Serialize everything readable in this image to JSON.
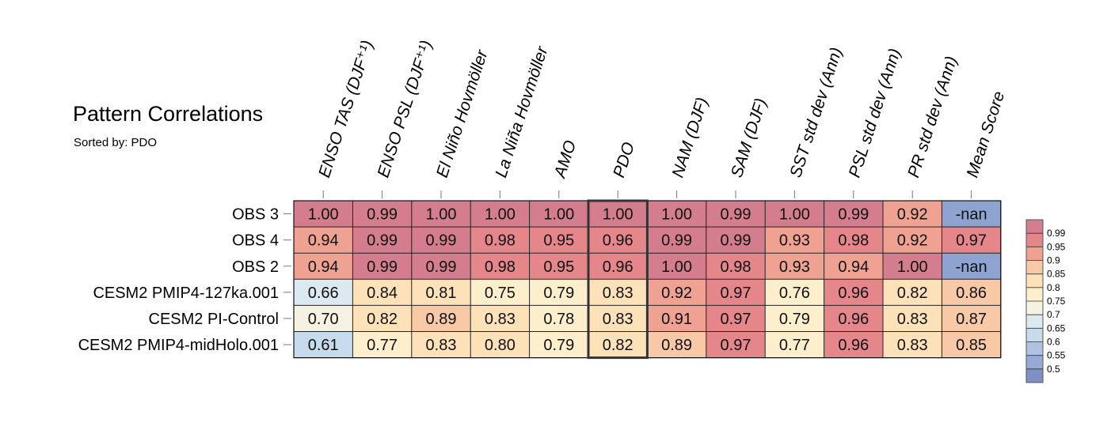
{
  "page": {
    "title": "Pattern Correlations",
    "subtitle": "Sorted by: PDO"
  },
  "chart_data": {
    "type": "heatmap",
    "title": "Pattern Correlations",
    "subtitle": "Sorted by: PDO",
    "columns": [
      "ENSO TAS (DJF⁺¹)",
      "ENSO PSL (DJF⁺¹)",
      "El Niño Hovmöller",
      "La Niña Hovmöller",
      "AMO",
      "PDO",
      "NAM (DJF)",
      "SAM (DJF)",
      "SST std dev (Ann)",
      "PSL std dev (Ann)",
      "PR std dev (Ann)",
      "Mean Score"
    ],
    "rows": [
      "OBS 3",
      "OBS 4",
      "OBS 2",
      "CESM2 PMIP4-127ka.001",
      "CESM2 PI-Control",
      "CESM2 PMIP4-midHolo.001"
    ],
    "values": [
      [
        "1.00",
        "0.99",
        "1.00",
        "1.00",
        "1.00",
        "1.00",
        "1.00",
        "0.99",
        "1.00",
        "0.99",
        "0.92",
        "-nan"
      ],
      [
        "0.94",
        "0.99",
        "0.99",
        "0.98",
        "0.95",
        "0.96",
        "0.99",
        "0.99",
        "0.93",
        "0.98",
        "0.92",
        "0.97"
      ],
      [
        "0.94",
        "0.99",
        "0.99",
        "0.98",
        "0.95",
        "0.96",
        "1.00",
        "0.98",
        "0.93",
        "0.94",
        "1.00",
        "-nan"
      ],
      [
        "0.66",
        "0.84",
        "0.81",
        "0.75",
        "0.79",
        "0.83",
        "0.92",
        "0.97",
        "0.76",
        "0.96",
        "0.82",
        "0.86"
      ],
      [
        "0.70",
        "0.82",
        "0.89",
        "0.83",
        "0.78",
        "0.83",
        "0.91",
        "0.97",
        "0.79",
        "0.96",
        "0.83",
        "0.87"
      ],
      [
        "0.61",
        "0.77",
        "0.83",
        "0.80",
        "0.79",
        "0.82",
        "0.89",
        "0.97",
        "0.77",
        "0.96",
        "0.83",
        "0.85"
      ]
    ],
    "highlighted_column": "PDO",
    "nan_color": "#8ea3cf",
    "colorbar": {
      "labels": [
        "0.99",
        "0.95",
        "0.9",
        "0.85",
        "0.8",
        "0.75",
        "0.7",
        "0.65",
        "0.6",
        "0.55",
        "0.5"
      ],
      "colors": [
        "#d37d8f",
        "#e5868a",
        "#f0a292",
        "#f8c9a6",
        "#fde1b9",
        "#fdefcb",
        "#f5f2e2",
        "#dde9f0",
        "#c6dbec",
        "#aec3df",
        "#96aad4",
        "#7e8fc3"
      ]
    }
  }
}
